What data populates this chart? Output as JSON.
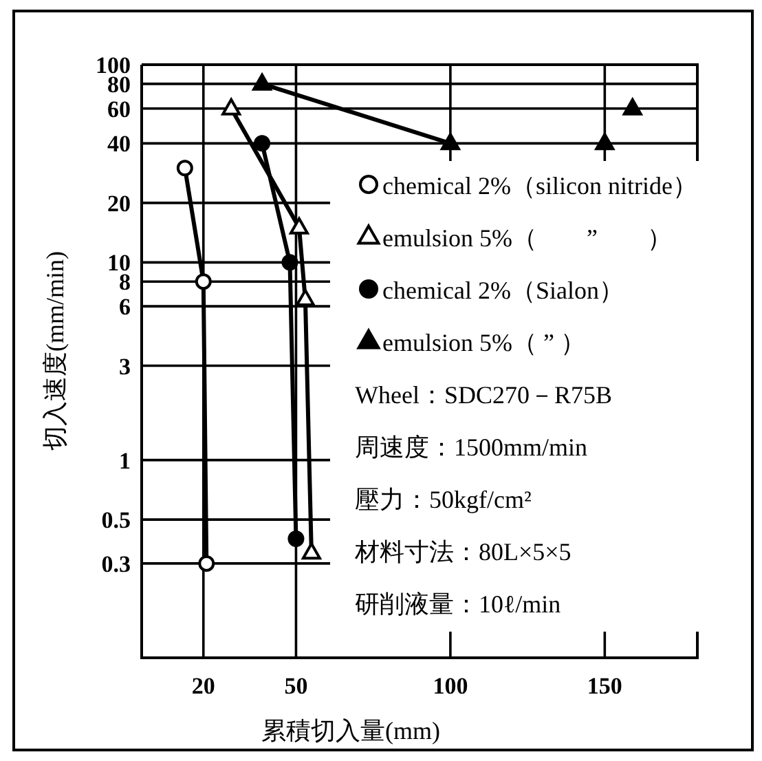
{
  "chart_data": {
    "type": "line",
    "xlabel": "累積切入量(mm)",
    "ylabel": "切入速度(mm/min)",
    "xlim": [
      0,
      180
    ],
    "xticks": [
      20,
      50,
      100,
      150
    ],
    "ylim": [
      0.1,
      100
    ],
    "yticks": [
      0.3,
      0.5,
      1,
      3,
      6,
      8,
      10,
      20,
      40,
      60,
      80,
      100
    ],
    "log": "y",
    "grid": true,
    "legend": "right",
    "line_style": "solid",
    "series": [
      {
        "name": "chemical 2%（silicon nitride）",
        "color": "#000000",
        "marker": "circle",
        "colors": [
          "#ffffff",
          "#ffffff",
          "#ffffff"
        ],
        "x": [
          14,
          20,
          21
        ],
        "values": [
          30,
          8,
          0.3
        ]
      },
      {
        "name": "emulsion 5%（　　”　　）",
        "color": "#000000",
        "marker": "triangle",
        "colors": [
          "#ffffff",
          "#ffffff",
          "#ffffff",
          "#ffffff"
        ],
        "x": [
          29,
          51,
          53,
          55
        ],
        "values": [
          60,
          15,
          6.5,
          0.34
        ]
      },
      {
        "name": "chemical 2%（Sialon）",
        "color": "#000000",
        "marker": "circle",
        "x": [
          39,
          48,
          50
        ],
        "values": [
          40,
          10,
          0.4
        ]
      },
      {
        "name": "emulsion 5%（ ” ）",
        "color": "#000000",
        "marker": "triangle",
        "x": [
          39,
          100
        ],
        "values": [
          80,
          40
        ]
      },
      {
        "type": "scatter",
        "color": "#000000",
        "marker": "triangle",
        "x": [
          150,
          159
        ],
        "values": [
          40,
          60
        ]
      }
    ],
    "annotations": [
      "Wheel：SDC270－R75B",
      "周速度：1500mm/min",
      "壓力：50kgf/cm²",
      "材料寸法：80L×5×5",
      "研削液量：10ℓ/min"
    ]
  }
}
